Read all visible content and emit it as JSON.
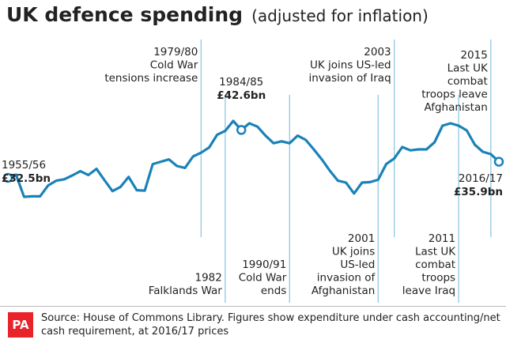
{
  "title": "UK defence spending",
  "subtitle": "(adjusted for inflation)",
  "source_text": "Source: House of Commons Library. Figures show expenditure under cash accounting/net cash requirement, at 2016/17 prices",
  "logo_text": "PA",
  "colors": {
    "line": "#1a82b8",
    "marker_fill": "#ffffff",
    "vline": "#8fc8e3",
    "logo": "#e8232a"
  },
  "chart_data": {
    "type": "line",
    "title": "UK defence spending",
    "subtitle": "(adjusted for inflation)",
    "x": [
      1955,
      1956,
      1957,
      1958,
      1959,
      1960,
      1961,
      1962,
      1963,
      1964,
      1965,
      1966,
      1967,
      1968,
      1969,
      1970,
      1971,
      1972,
      1973,
      1974,
      1975,
      1976,
      1977,
      1978,
      1979,
      1980,
      1981,
      1982,
      1983,
      1984,
      1985,
      1986,
      1987,
      1988,
      1989,
      1990,
      1991,
      1992,
      1993,
      1994,
      1995,
      1996,
      1997,
      1998,
      1999,
      2000,
      2001,
      2002,
      2003,
      2004,
      2005,
      2006,
      2007,
      2008,
      2009,
      2010,
      2011,
      2012,
      2013,
      2014,
      2015,
      2016
    ],
    "y": [
      32.5,
      33.2,
      28.5,
      28.6,
      28.6,
      30.9,
      31.9,
      32.2,
      33.0,
      33.9,
      33.1,
      34.4,
      32.0,
      29.7,
      30.6,
      32.7,
      29.9,
      29.8,
      35.4,
      35.9,
      36.4,
      35.0,
      34.6,
      37.0,
      37.8,
      38.9,
      41.6,
      42.4,
      44.5,
      42.6,
      44.0,
      43.3,
      41.4,
      39.8,
      40.2,
      39.8,
      41.4,
      40.5,
      38.5,
      36.4,
      34.0,
      31.9,
      31.5,
      29.2,
      31.5,
      31.6,
      32.1,
      35.4,
      36.6,
      39.0,
      38.3,
      38.5,
      38.5,
      40.0,
      43.5,
      44.0,
      43.5,
      42.5,
      39.5,
      38.0,
      37.5,
      35.9
    ],
    "ylim": [
      20,
      50
    ],
    "xlim": [
      1955,
      2016
    ],
    "grid": false,
    "highlighted_points": [
      {
        "x": 1955,
        "y": 32.5,
        "label": "1955/56",
        "value_label": "£32.5bn"
      },
      {
        "x": 1984,
        "y": 42.6,
        "label": "1984/85",
        "value_label": "£42.6bn"
      },
      {
        "x": 2016,
        "y": 35.9,
        "label": "2016/17",
        "value_label": "£35.9bn"
      }
    ],
    "events": [
      {
        "x": 1979,
        "position": "top",
        "lines": [
          "1979/80",
          "Cold War",
          "tensions increase"
        ]
      },
      {
        "x": 1982,
        "position": "bottom",
        "lines": [
          "1982",
          "Falklands War"
        ]
      },
      {
        "x": 1990,
        "position": "bottom",
        "lines": [
          "1990/91",
          "Cold War",
          "ends"
        ]
      },
      {
        "x": 2001,
        "position": "bottom",
        "lines": [
          "2001",
          "UK joins",
          "US-led",
          "invasion of",
          "Afghanistan"
        ]
      },
      {
        "x": 2003,
        "position": "top",
        "lines": [
          "2003",
          "UK joins US-led",
          "invasion of Iraq"
        ]
      },
      {
        "x": 2011,
        "position": "bottom",
        "lines": [
          "2011",
          "Last UK",
          "combat",
          "troops",
          "leave Iraq"
        ]
      },
      {
        "x": 2015,
        "position": "top",
        "lines": [
          "2015",
          "Last UK",
          "combat",
          "troops leave",
          "Afghanistan"
        ]
      }
    ]
  }
}
